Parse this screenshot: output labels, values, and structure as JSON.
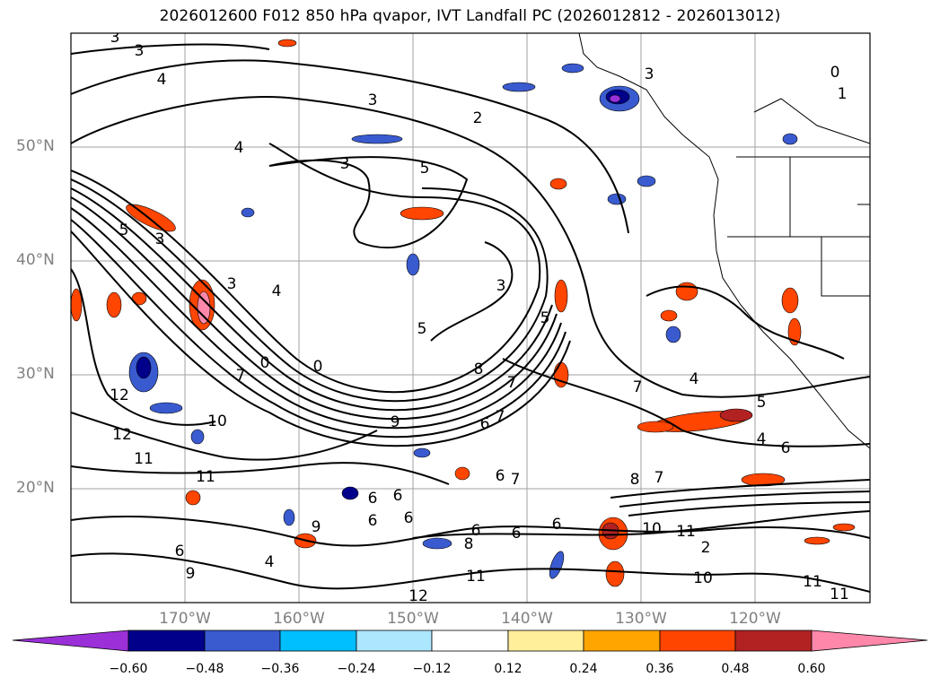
{
  "title": "2026012600 F012 850 hPa qvapor, IVT Landfall PC (2026012812 - 2026013012)",
  "map": {
    "lat_labels": [
      "50°N",
      "40°N",
      "30°N",
      "20°N"
    ],
    "lon_labels": [
      "170°W",
      "160°W",
      "150°W",
      "140°W",
      "130°W",
      "120°W"
    ],
    "contour_labels": [
      "3",
      "3",
      "4",
      "3",
      "2",
      "0",
      "1",
      "3",
      "4",
      "3",
      "5",
      "3",
      "5",
      "3",
      "4",
      "5",
      "5",
      "3",
      "0",
      "0",
      "7",
      "12",
      "10",
      "9",
      "8",
      "7",
      "6",
      "7",
      "4",
      "5",
      "4",
      "6",
      "11",
      "11",
      "8",
      "7",
      "6",
      "6",
      "6",
      "6",
      "9",
      "6",
      "6",
      "6",
      "7",
      "10",
      "11",
      "12",
      "10",
      "11",
      "11",
      "4",
      "9",
      "2",
      "8",
      "6",
      "6",
      "12",
      "11",
      "7"
    ]
  },
  "colorbar": {
    "colors": [
      "#9b30d9",
      "#00008b",
      "#3a5bcf",
      "#00bfff",
      "#ade6ff",
      "#ffffff",
      "#ffee9a",
      "#ffa500",
      "#ff4500",
      "#b22222",
      "#ff88aa"
    ],
    "ticks": [
      "−0.60",
      "−0.48",
      "−0.36",
      "−0.24",
      "−0.12",
      "0.12",
      "0.24",
      "0.36",
      "0.48",
      "0.60"
    ]
  },
  "colors": {
    "contour": "#000000",
    "grid": "#a0a0a0",
    "border": "#000000"
  }
}
